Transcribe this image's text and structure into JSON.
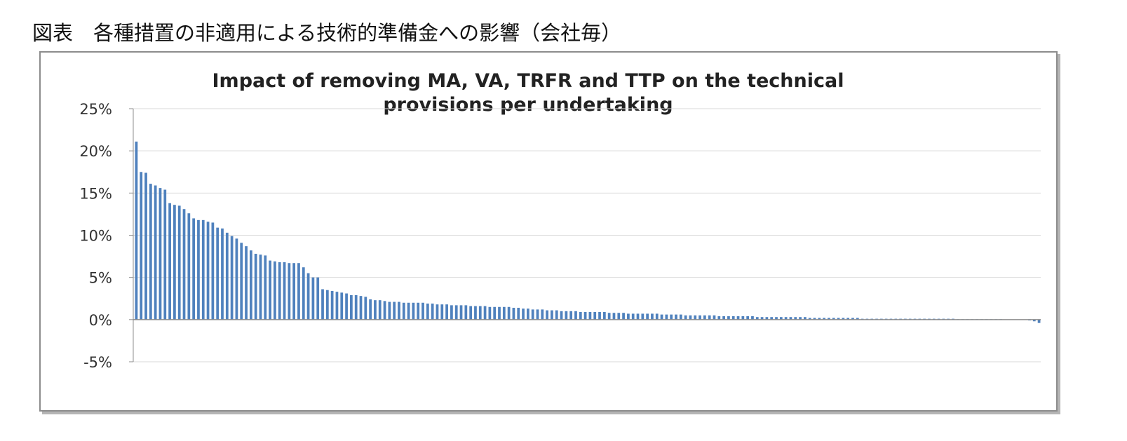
{
  "caption": "図表　各種措置の非適用による技術的準備金への影響（会社毎）",
  "colors": {
    "bar": "#4f81bd",
    "grid": "#d9d9d9",
    "axis": "#8c8c8c"
  },
  "chart_data": {
    "type": "bar",
    "title": "Impact of removing MA, VA, TRFR and TTP on the technical provisions per undertaking",
    "title_lines": [
      "Impact of removing MA, VA, TRFR and TTP on the technical",
      "provisions per undertaking"
    ],
    "xlabel": "",
    "ylabel": "",
    "ylim": [
      -5,
      25
    ],
    "yticks": [
      25,
      20,
      15,
      10,
      5,
      0,
      -5
    ],
    "ytick_labels": [
      "25%",
      "20%",
      "15%",
      "10%",
      "5%",
      "0%",
      "-5%"
    ],
    "grid": true,
    "categories_shown": false,
    "values": [
      21.1,
      17.5,
      17.4,
      16.1,
      15.9,
      15.6,
      15.4,
      13.8,
      13.6,
      13.5,
      13.1,
      12.6,
      12.0,
      11.8,
      11.8,
      11.6,
      11.5,
      10.9,
      10.8,
      10.3,
      9.9,
      9.6,
      9.1,
      8.7,
      8.2,
      7.8,
      7.7,
      7.6,
      7.0,
      6.9,
      6.8,
      6.8,
      6.7,
      6.7,
      6.7,
      6.2,
      5.5,
      5.0,
      5.0,
      3.6,
      3.5,
      3.4,
      3.3,
      3.2,
      3.1,
      2.9,
      2.9,
      2.8,
      2.7,
      2.4,
      2.3,
      2.3,
      2.2,
      2.1,
      2.1,
      2.1,
      2.0,
      2.0,
      2.0,
      2.0,
      2.0,
      1.9,
      1.9,
      1.8,
      1.8,
      1.8,
      1.7,
      1.7,
      1.7,
      1.7,
      1.6,
      1.6,
      1.6,
      1.6,
      1.5,
      1.5,
      1.5,
      1.5,
      1.5,
      1.4,
      1.4,
      1.3,
      1.3,
      1.2,
      1.2,
      1.2,
      1.1,
      1.1,
      1.1,
      1.0,
      1.0,
      1.0,
      1.0,
      0.9,
      0.9,
      0.9,
      0.9,
      0.9,
      0.9,
      0.8,
      0.8,
      0.8,
      0.8,
      0.7,
      0.7,
      0.7,
      0.7,
      0.7,
      0.7,
      0.7,
      0.6,
      0.6,
      0.6,
      0.6,
      0.6,
      0.5,
      0.5,
      0.5,
      0.5,
      0.5,
      0.5,
      0.5,
      0.4,
      0.4,
      0.4,
      0.4,
      0.4,
      0.4,
      0.4,
      0.4,
      0.3,
      0.3,
      0.3,
      0.3,
      0.3,
      0.3,
      0.3,
      0.3,
      0.3,
      0.3,
      0.3,
      0.2,
      0.2,
      0.2,
      0.2,
      0.2,
      0.2,
      0.2,
      0.2,
      0.2,
      0.2,
      0.2,
      0.1,
      0.1,
      0.1,
      0.1,
      0.1,
      0.1,
      0.1,
      0.1,
      0.1,
      0.1,
      0.1,
      0.1,
      0.1,
      0.1,
      0.1,
      0.1,
      0.1,
      0.1,
      0.1,
      0.1,
      0.05,
      0.05,
      0.05,
      0.05,
      0.05,
      0.05,
      0.05,
      0.05,
      0.05,
      0.05,
      0.0,
      0.0,
      0.0,
      0.0,
      0.0,
      -0.1,
      -0.2,
      -0.4
    ]
  }
}
